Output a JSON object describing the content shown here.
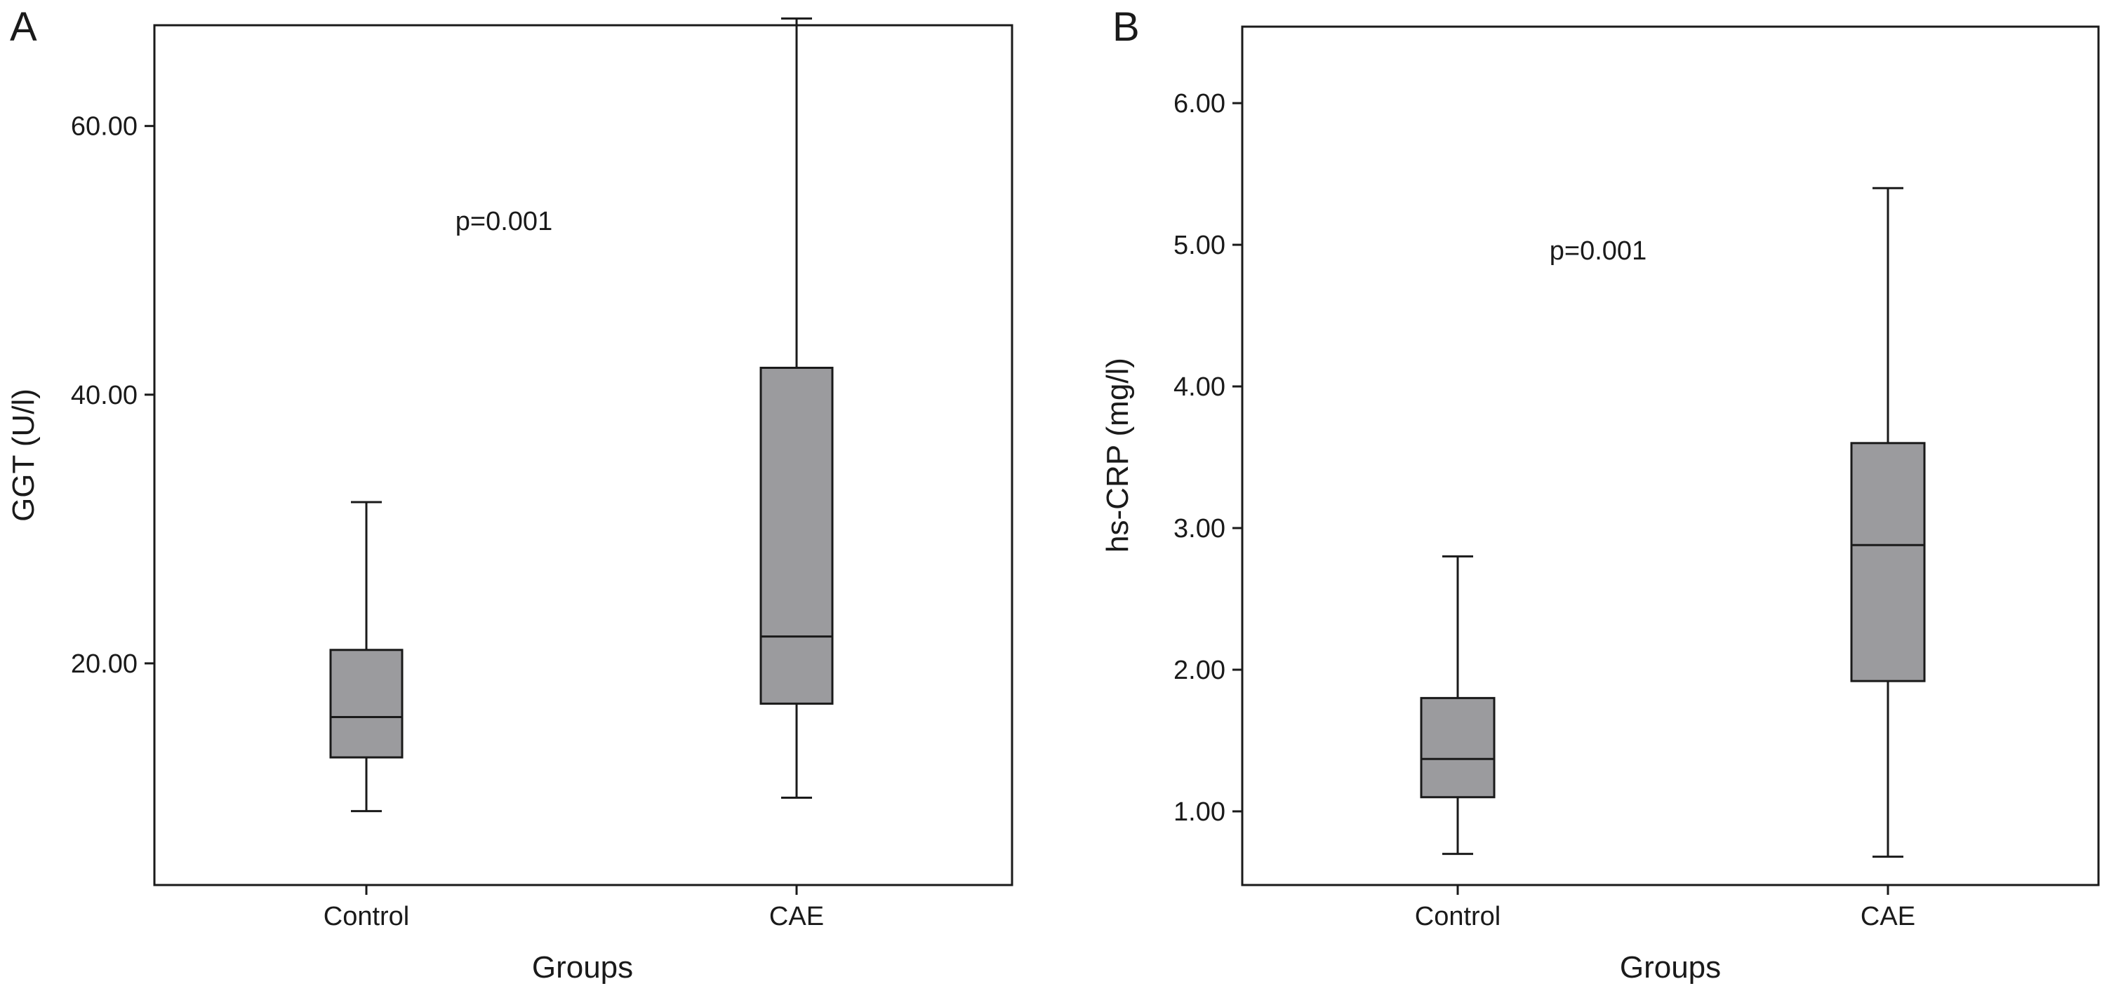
{
  "chart_data": [
    {
      "type": "box",
      "panel_label": "A",
      "title": "",
      "xlabel": "Groups",
      "ylabel": "GGT (U/l)",
      "categories": [
        "Control",
        "CAE"
      ],
      "ylim": [
        3.5,
        67.5
      ],
      "yticks": [
        20,
        40,
        60
      ],
      "ytick_labels": [
        "20.00",
        "40.00",
        "60.00"
      ],
      "boxes": [
        {
          "category": "Control",
          "whisker_low": 9,
          "q1": 13,
          "median": 16,
          "q3": 21,
          "whisker_high": 32
        },
        {
          "category": "CAE",
          "whisker_low": 10,
          "q1": 17,
          "median": 22,
          "q3": 42,
          "whisker_high": 68
        }
      ],
      "annotation": "p=0.001",
      "grid": false,
      "box_color": "#9b9b9e"
    },
    {
      "type": "box",
      "panel_label": "B",
      "title": "",
      "xlabel": "Groups",
      "ylabel": "hs-CRP (mg/l)",
      "categories": [
        "Control",
        "CAE"
      ],
      "ylim": [
        0.48,
        6.54
      ],
      "yticks": [
        1,
        2,
        3,
        4,
        5,
        6
      ],
      "ytick_labels": [
        "1.00",
        "2.00",
        "3.00",
        "4.00",
        "5.00",
        "6.00"
      ],
      "boxes": [
        {
          "category": "Control",
          "whisker_low": 0.7,
          "q1": 1.1,
          "median": 1.37,
          "q3": 1.8,
          "whisker_high": 2.8
        },
        {
          "category": "CAE",
          "whisker_low": 0.68,
          "q1": 1.92,
          "median": 2.88,
          "q3": 3.6,
          "whisker_high": 5.4
        }
      ],
      "annotation": "p=0.001",
      "grid": false,
      "box_color": "#9b9b9e"
    }
  ]
}
